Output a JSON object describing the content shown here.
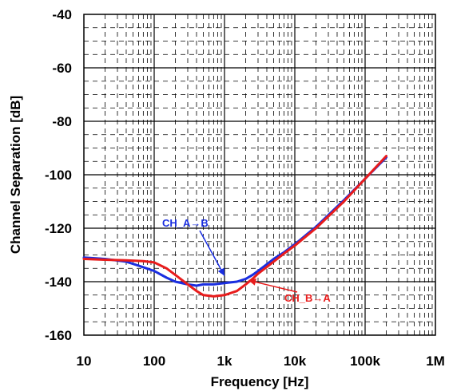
{
  "chart_data": {
    "type": "line",
    "title": "",
    "xlabel": "Frequency [Hz]",
    "ylabel": "Channel Separation [dB]",
    "x_scale": "log",
    "xlim": [
      10,
      1000000
    ],
    "ylim": [
      -160,
      -40
    ],
    "grid": true,
    "x_tick_labels": [
      "10",
      "100",
      "1k",
      "10k",
      "100k",
      "1M"
    ],
    "x_tick_values": [
      10,
      100,
      1000,
      10000,
      100000,
      1000000
    ],
    "y_tick_labels": [
      "-40",
      "-60",
      "-80",
      "-100",
      "-120",
      "-140",
      "-160"
    ],
    "y_tick_values": [
      -40,
      -60,
      -80,
      -100,
      -120,
      -140,
      -160
    ],
    "series": [
      {
        "name": "CH_A→B",
        "color": "#1a2ee0",
        "x": [
          10,
          20,
          40,
          60,
          100,
          150,
          200,
          300,
          400,
          500,
          700,
          1000,
          1500,
          2000,
          2500,
          3000,
          4000,
          5000,
          7000,
          10000,
          20000,
          50000,
          100000,
          200000
        ],
        "y": [
          -131,
          -131.5,
          -132.5,
          -134,
          -136,
          -138.5,
          -140,
          -141,
          -141.5,
          -141,
          -141,
          -140.5,
          -140,
          -139,
          -137.5,
          -136,
          -133.5,
          -131.5,
          -129,
          -126,
          -119.5,
          -109.5,
          -101.5,
          -93.5
        ]
      },
      {
        "name": "CH_B→A",
        "color": "#e81c1c",
        "x": [
          10,
          20,
          40,
          70,
          100,
          150,
          200,
          300,
          400,
          500,
          700,
          1000,
          1500,
          2000,
          2500,
          3000,
          4000,
          5000,
          7000,
          10000,
          20000,
          50000,
          100000,
          200000
        ],
        "y": [
          -131.5,
          -131.8,
          -132,
          -132.3,
          -132.8,
          -135,
          -137.5,
          -141,
          -143.5,
          -145,
          -145.5,
          -145,
          -143.5,
          -141,
          -139,
          -137,
          -134.5,
          -132.5,
          -129.5,
          -126.5,
          -120,
          -110,
          -101.5,
          -93
        ]
      }
    ],
    "annotations": [
      {
        "text": "CH_A→B",
        "color": "#1a2ee0",
        "target_x": 1000,
        "target_y": -137.8
      },
      {
        "text": "CH_B→A",
        "color": "#e81c1c",
        "target_x": 2200,
        "target_y": -139.5
      }
    ]
  }
}
